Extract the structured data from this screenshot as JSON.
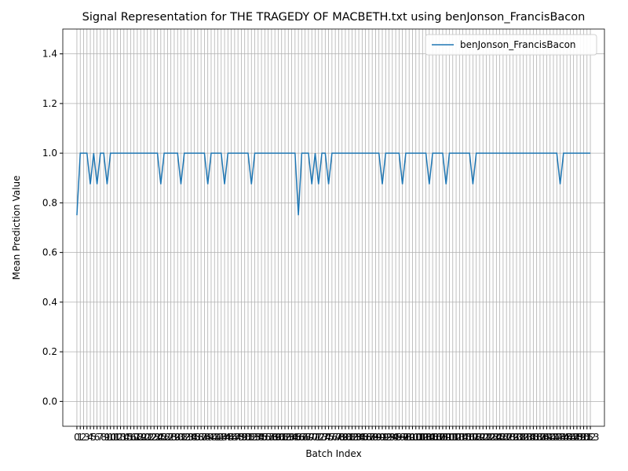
{
  "chart_data": {
    "type": "line",
    "title": "Signal Representation for THE TRAGEDY OF MACBETH.txt using benJonson_FrancisBacon",
    "xlabel": "Batch Index",
    "ylabel": "Mean Prediction Value",
    "x": [
      0,
      1,
      2,
      3,
      4,
      5,
      6,
      7,
      8,
      9,
      10,
      11,
      12,
      13,
      14,
      15,
      16,
      17,
      18,
      19,
      20,
      21,
      22,
      23,
      24,
      25,
      26,
      27,
      28,
      29,
      30,
      31,
      32,
      33,
      34,
      35,
      36,
      37,
      38,
      39,
      40,
      41,
      42,
      43,
      44,
      45,
      46,
      47,
      48,
      49,
      50,
      51,
      52,
      53,
      54,
      55,
      56,
      57,
      58,
      59,
      60,
      61,
      62,
      63,
      64,
      65,
      66,
      67,
      68,
      69,
      70,
      71,
      72,
      73,
      74,
      75,
      76,
      77,
      78,
      79,
      80,
      81,
      82,
      83,
      84,
      85,
      86,
      87,
      88,
      89,
      90,
      91,
      92,
      93,
      94,
      95,
      96,
      97,
      98,
      99,
      100,
      101,
      102,
      103,
      104,
      105,
      106,
      107,
      108,
      109,
      110,
      111,
      112,
      113,
      114,
      115,
      116,
      117,
      118,
      119,
      120,
      121,
      122,
      123,
      124,
      125,
      126,
      127,
      128,
      129,
      130,
      131,
      132,
      133,
      134,
      135,
      136,
      137,
      138,
      139,
      140,
      141,
      142,
      143,
      144,
      145,
      146,
      147,
      148,
      149,
      150,
      151,
      152,
      153
    ],
    "series": [
      {
        "name": "benJonson_FrancisBacon",
        "color": "#1f77b4",
        "values": [
          0.75,
          1,
          1,
          1,
          0.875,
          1,
          0.875,
          1,
          1,
          0.875,
          1,
          1,
          1,
          1,
          1,
          1,
          1,
          1,
          1,
          1,
          1,
          1,
          1,
          1,
          1,
          0.875,
          1,
          1,
          1,
          1,
          1,
          0.875,
          1,
          1,
          1,
          1,
          1,
          1,
          1,
          0.875,
          1,
          1,
          1,
          1,
          0.875,
          1,
          1,
          1,
          1,
          1,
          1,
          1,
          0.875,
          1,
          1,
          1,
          1,
          1,
          1,
          1,
          1,
          1,
          1,
          1,
          1,
          1,
          0.75,
          1,
          1,
          1,
          0.875,
          1,
          0.875,
          1,
          1,
          0.875,
          1,
          1,
          1,
          1,
          1,
          1,
          1,
          1,
          1,
          1,
          1,
          1,
          1,
          1,
          1,
          0.875,
          1,
          1,
          1,
          1,
          1,
          0.875,
          1,
          1,
          1,
          1,
          1,
          1,
          1,
          0.875,
          1,
          1,
          1,
          1,
          0.875,
          1,
          1,
          1,
          1,
          1,
          1,
          1,
          0.875,
          1,
          1,
          1,
          1,
          1,
          1,
          1,
          1,
          1,
          1,
          1,
          1,
          1,
          1,
          1,
          1,
          1,
          1,
          1,
          1,
          1,
          1,
          1,
          1,
          1,
          0.875,
          1,
          1,
          1,
          1,
          1,
          1,
          1,
          1,
          1
        ]
      }
    ],
    "xlim": [
      -4.2,
      157.2
    ],
    "ylim": [
      -0.1,
      1.5
    ],
    "xticks": [
      0,
      1,
      2,
      3,
      4,
      5,
      6,
      7,
      8,
      9,
      10,
      11,
      12,
      13,
      14,
      15,
      16,
      17,
      18,
      19,
      20,
      21,
      22,
      23,
      24,
      25,
      26,
      27,
      28,
      29,
      30,
      31,
      32,
      33,
      34,
      35,
      36,
      37,
      38,
      39,
      40,
      41,
      42,
      43,
      44,
      45,
      46,
      47,
      48,
      49,
      50,
      51,
      52,
      53,
      54,
      55,
      56,
      57,
      58,
      59,
      60,
      61,
      62,
      63,
      64,
      65,
      66,
      67,
      68,
      69,
      70,
      71,
      72,
      73,
      74,
      75,
      76,
      77,
      78,
      79,
      80,
      81,
      82,
      83,
      84,
      85,
      86,
      87,
      88,
      89,
      90,
      91,
      92,
      93,
      94,
      95,
      96,
      97,
      98,
      99,
      100,
      101,
      102,
      103,
      104,
      105,
      106,
      107,
      108,
      109,
      110,
      111,
      112,
      113,
      114,
      115,
      116,
      117,
      118,
      119,
      120,
      121,
      122,
      123,
      124,
      125,
      126,
      127,
      128,
      129,
      130,
      131,
      132,
      133,
      134,
      135,
      136,
      137,
      138,
      139,
      140,
      141,
      142,
      143,
      144,
      145,
      146,
      147,
      148,
      149,
      150,
      151,
      152,
      153
    ],
    "yticks": [
      {
        "value": 0,
        "label": "0.0"
      },
      {
        "value": 0.2,
        "label": "0.2"
      },
      {
        "value": 0.4,
        "label": "0.4"
      },
      {
        "value": 0.6,
        "label": "0.6"
      },
      {
        "value": 0.8,
        "label": "0.8"
      },
      {
        "value": 1,
        "label": "1.0"
      },
      {
        "value": 1.2,
        "label": "1.2"
      },
      {
        "value": 1.4,
        "label": "1.4"
      }
    ],
    "grid": true,
    "legend": "upper-right"
  }
}
